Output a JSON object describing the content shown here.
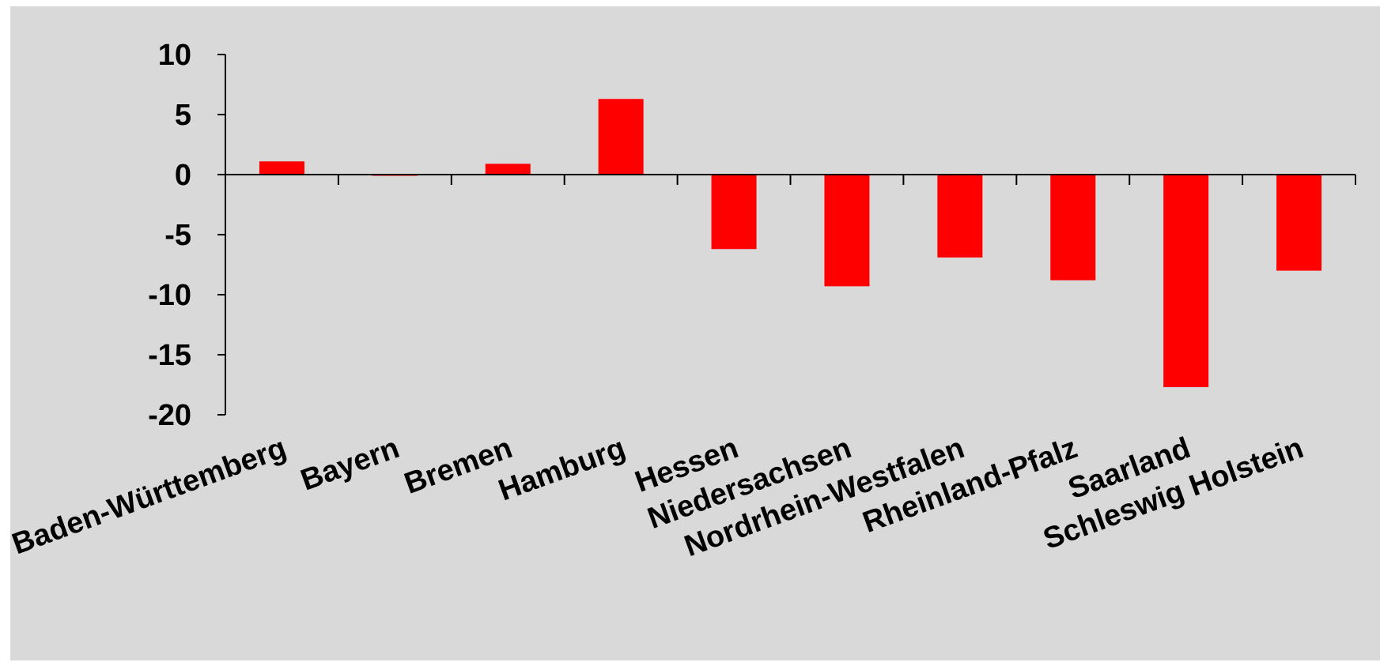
{
  "chart_data": {
    "type": "bar",
    "categories": [
      "Baden-Württemberg",
      "Bayern",
      "Bremen",
      "Hamburg",
      "Hessen",
      "Niedersachsen",
      "Nordrhein-Westfalen",
      "Rheinland-Pfalz",
      "Saarland",
      "Schleswig Holstein"
    ],
    "values": [
      1.1,
      -0.1,
      0.9,
      6.3,
      -6.2,
      -9.3,
      -6.9,
      -8.8,
      -17.7,
      -8.0
    ],
    "title": "",
    "xlabel": "",
    "ylabel": "",
    "ylim": [
      -20,
      10
    ],
    "yticks": [
      "10",
      "5",
      "0",
      "-5",
      "-10",
      "-15",
      "-20"
    ],
    "bar_color": "#ff0000",
    "background_color": "#d9d9d9",
    "grid": false,
    "legend": "none"
  }
}
